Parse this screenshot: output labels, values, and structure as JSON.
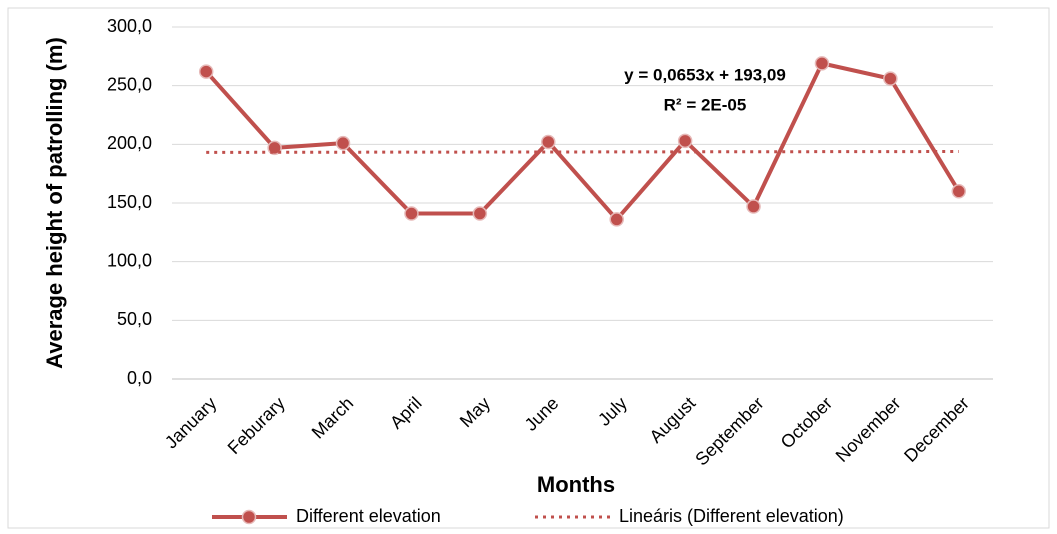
{
  "chart_data": {
    "type": "line",
    "y_label": "Average height of patrolling (m)",
    "x_label": "Months",
    "categories": [
      "January",
      "Feburary",
      "March",
      "April",
      "May",
      "June",
      "July",
      "August",
      "September",
      "October",
      "November",
      "December"
    ],
    "series": [
      {
        "name": "Different elevation",
        "color": "#c0504d",
        "style": "solid-marker",
        "values": [
          262,
          197,
          201,
          141,
          141,
          202,
          136,
          203,
          147,
          269,
          256,
          160
        ]
      },
      {
        "name": "Lineáris (Different elevation)",
        "color": "#c0504d",
        "style": "dotted",
        "values": [
          193.16,
          193.22,
          193.29,
          193.35,
          193.42,
          193.48,
          193.55,
          193.61,
          193.68,
          193.74,
          193.81,
          193.87
        ]
      }
    ],
    "annotations": [
      "y = 0,0653x + 193,09",
      "R² = 2E-05"
    ],
    "ylim": [
      0,
      300
    ],
    "yticks": [
      {
        "value": 0,
        "label": "0,0"
      },
      {
        "value": 50,
        "label": "50,0"
      },
      {
        "value": 100,
        "label": "100,0"
      },
      {
        "value": 150,
        "label": "150,0"
      },
      {
        "value": 200,
        "label": "200,0"
      },
      {
        "value": 250,
        "label": "250,0"
      },
      {
        "value": 300,
        "label": "300,0"
      }
    ],
    "grid": true,
    "legend": "bottom"
  }
}
